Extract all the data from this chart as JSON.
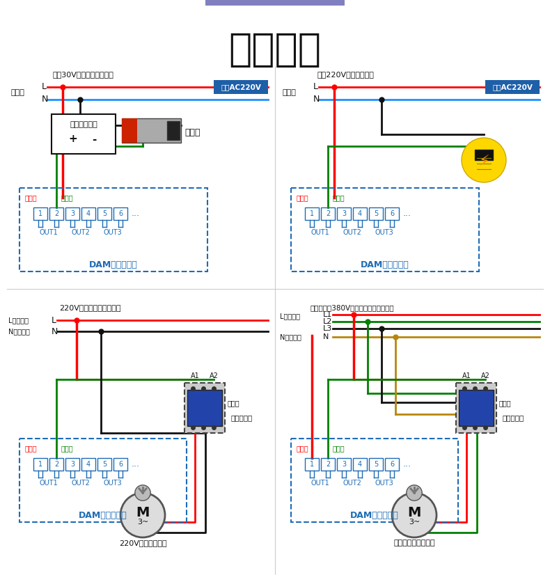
{
  "title": "输出接线",
  "title_bar_color": "#8080c0",
  "bg_color": "#ffffff",
  "red": "#ff0000",
  "blue": "#1e90ff",
  "green": "#008000",
  "black": "#111111",
  "yellow": "#b8860b",
  "ctrl_blue": "#1e6cb5",
  "coil_bg": "#1e5fa8",
  "coil_fg": "#ffffff",
  "tl_subtitle": "直流30V以下设备接线方法",
  "tl_power": "电源端",
  "tl_L": "L",
  "tl_N": "N",
  "tl_coil": "线圈AC220V",
  "tl_device": "被控设备电源",
  "tl_valve": "电磁阀",
  "tl_common": "公共端",
  "tl_no": "常开端",
  "tl_ctrl": "DAM数采控制器",
  "tr_subtitle": "交流220V设备接线方法",
  "tr_power": "电源端",
  "tr_L": "L",
  "tr_N": "N",
  "tr_coil": "线圈AC220V",
  "tr_common": "公共端",
  "tr_no": "常开端",
  "tr_ctrl": "DAM数采控制器",
  "bl_subtitle": "220V接交流接触器接线图",
  "bl_lfire": "L代表火线",
  "bl_nzero": "N代表零线",
  "bl_L": "L",
  "bl_N": "N",
  "bl_common": "公共端",
  "bl_no": "常开端",
  "bl_ctrl": "DAM数采控制器",
  "bl_A1": "A1",
  "bl_A2": "A2",
  "bl_contact": "主触点",
  "bl_contactor": "交流接触器",
  "bl_bottom": "220V功率较大设备",
  "br_subtitle": "带零线交流380V接电机、泵等设备接线",
  "br_lfire": "L代表火线",
  "br_nzero": "N代表零线",
  "br_L1": "L1",
  "br_L2": "L2",
  "br_L3": "L3",
  "br_N": "N",
  "br_common": "公共端",
  "br_no": "常开端",
  "br_ctrl": "DAM数采控制器",
  "br_A1": "A1",
  "br_A2": "A2",
  "br_contact": "主触点",
  "br_contactor": "交流接触器",
  "br_bottom": "电机、泵等大型设备"
}
